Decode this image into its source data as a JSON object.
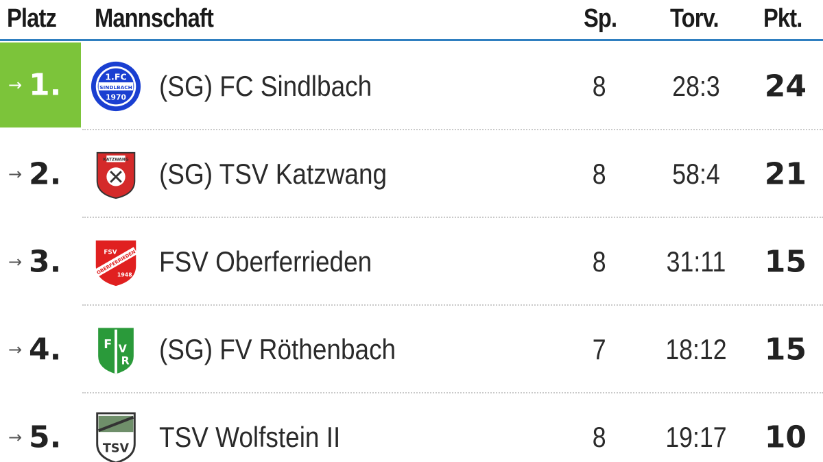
{
  "header": {
    "platz": "Platz",
    "mannschaft": "Mannschaft",
    "spiele": "Sp.",
    "tore": "Torv.",
    "punkte": "Pkt."
  },
  "rows": [
    {
      "arrow": "→",
      "rank": "1.",
      "team": "(SG) FC Sindlbach",
      "games": "8",
      "goals": "28:3",
      "points": "24",
      "logo": "fc-sindlbach-logo",
      "logo_text": "1.FC SINDLBACH 1970 e.V."
    },
    {
      "arrow": "→",
      "rank": "2.",
      "team": "(SG) TSV Katzwang",
      "games": "8",
      "goals": "58:4",
      "points": "21",
      "logo": "tsv-katzwang-logo",
      "logo_text": "TSV KATZWANG"
    },
    {
      "arrow": "→",
      "rank": "3.",
      "team": "FSV Oberferrieden",
      "games": "8",
      "goals": "31:11",
      "points": "15",
      "logo": "fsv-oberferrieden-logo",
      "logo_text": "FSV OBERFERRIEDEN 1948 e.V."
    },
    {
      "arrow": "→",
      "rank": "4.",
      "team": "(SG) FV Röthenbach",
      "games": "7",
      "goals": "18:12",
      "points": "15",
      "logo": "fv-roethenbach-logo",
      "logo_text": "FV R"
    },
    {
      "arrow": "→",
      "rank": "5.",
      "team": "TSV Wolfstein II",
      "games": "8",
      "goals": "19:17",
      "points": "10",
      "logo": "tsv-wolfstein-logo",
      "logo_text": "TSV"
    }
  ],
  "colors": {
    "accent": "#2f7fc0",
    "leader_highlight": "#7cc43a",
    "sindlbach_blue": "#1a3fd1",
    "katzwang_red": "#d42a2a",
    "oberferrieden_red": "#e02020",
    "roethenbach_green": "#2a9a3a",
    "wolfstein_dark": "#333333"
  }
}
